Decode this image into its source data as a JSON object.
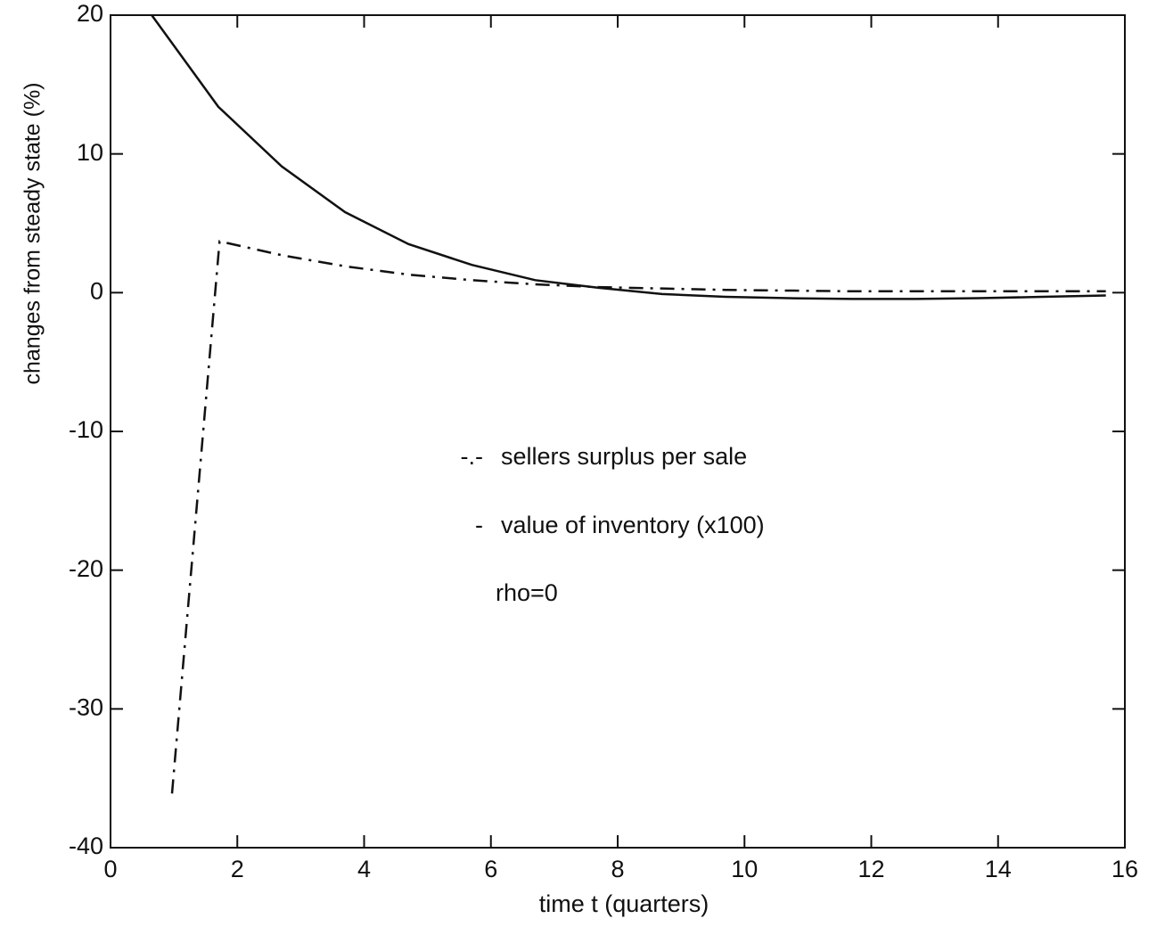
{
  "chart_data": {
    "type": "line",
    "xlabel": "time t (quarters)",
    "ylabel": "changes from steady state (%)",
    "xlim": [
      0,
      16
    ],
    "xticks": [
      0,
      2,
      4,
      6,
      8,
      10,
      12,
      14,
      16
    ],
    "ylim": [
      -40,
      20
    ],
    "yticks": [
      20,
      10,
      0,
      -10,
      -20,
      -30,
      -40
    ],
    "series": [
      {
        "name": "sellers surplus per sale",
        "legend_marker": "-.-",
        "color": "#111111",
        "dash": "dashdot",
        "x": [
          0.97,
          1.72,
          2.7,
          3.7,
          4.7,
          5.7,
          6.7,
          7.7,
          8.7,
          9.7,
          10.7,
          11.7,
          12.7,
          13.7,
          14.7,
          15.7
        ],
        "values": [
          -36.1,
          3.7,
          2.7,
          1.9,
          1.3,
          0.9,
          0.6,
          0.4,
          0.3,
          0.2,
          0.15,
          0.1,
          0.1,
          0.1,
          0.1,
          0.1
        ]
      },
      {
        "name": "value of inventory (x100)",
        "legend_marker": "-",
        "color": "#111111",
        "dash": "solid",
        "x": [
          0.65,
          1.7,
          2.7,
          3.7,
          4.7,
          5.7,
          6.7,
          7.7,
          8.7,
          9.7,
          10.7,
          11.7,
          12.7,
          13.7,
          14.7,
          15.7
        ],
        "values": [
          20,
          13.4,
          9.1,
          5.8,
          3.5,
          2.0,
          0.9,
          0.35,
          -0.1,
          -0.3,
          -0.4,
          -0.45,
          -0.45,
          -0.4,
          -0.3,
          -0.2
        ]
      }
    ],
    "annotations": [
      "rho=0"
    ]
  }
}
